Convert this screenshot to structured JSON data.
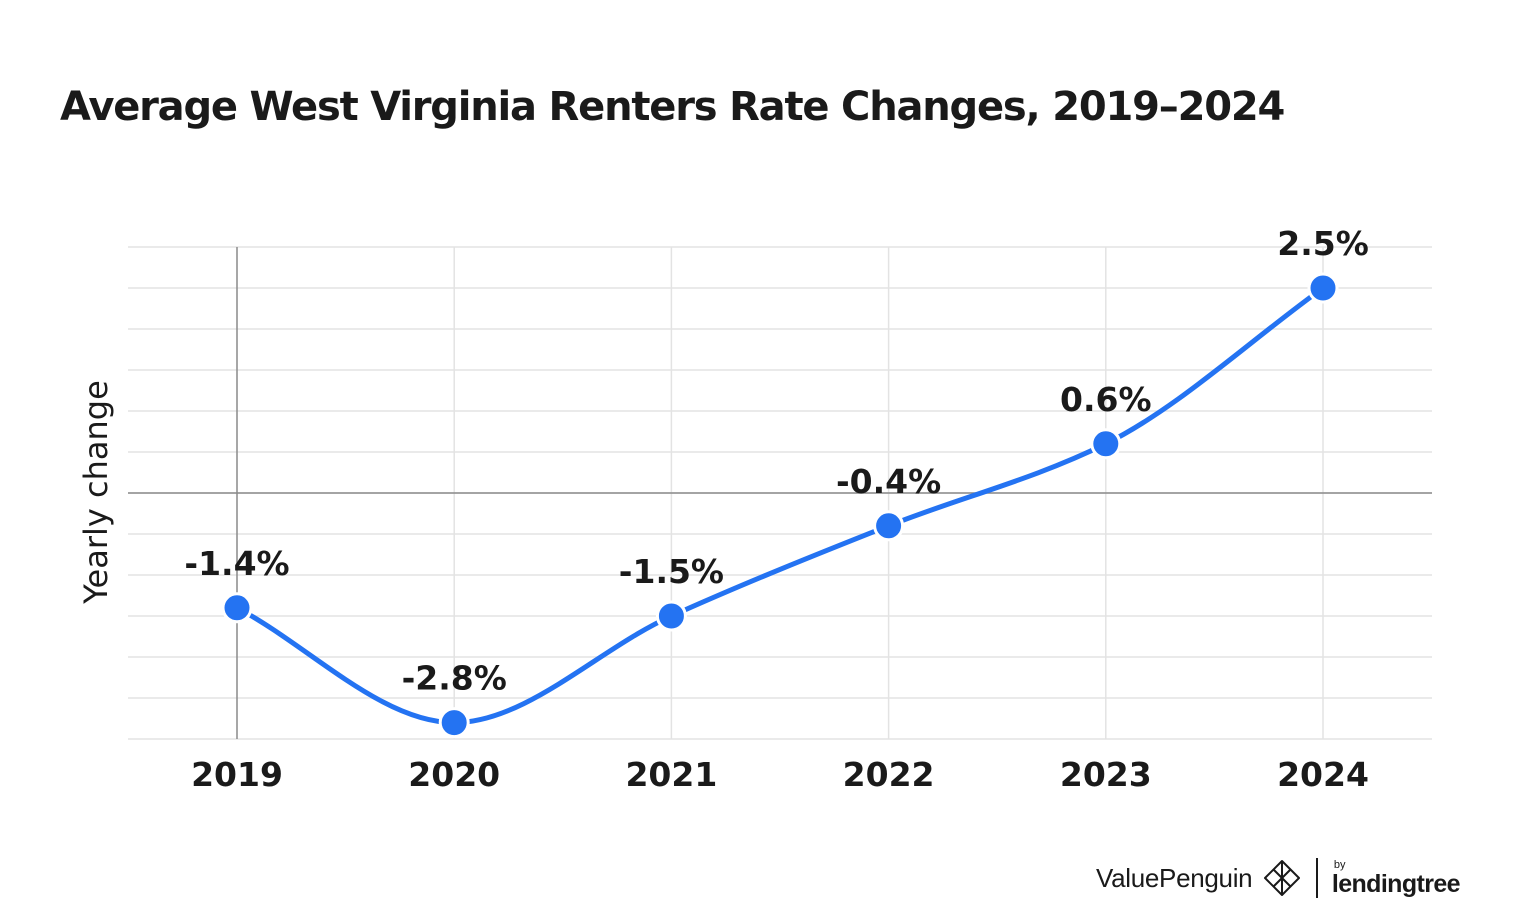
{
  "title": "Average West Virginia Renters Rate Changes, 2019–2024",
  "chart_data": {
    "type": "line",
    "title": "Average West Virginia Renters Rate Changes, 2019–2024",
    "xlabel": "",
    "ylabel": "Yearly change",
    "categories": [
      "2019",
      "2020",
      "2021",
      "2022",
      "2023",
      "2024"
    ],
    "values": [
      -1.4,
      -2.8,
      -1.5,
      -0.4,
      0.6,
      2.5
    ],
    "data_labels": [
      "-1.4%",
      "-2.8%",
      "-1.5%",
      "-0.4%",
      "0.6%",
      "2.5%"
    ],
    "ylim": [
      -3.0,
      3.0
    ],
    "grid": true,
    "line_color": "#2473f2"
  },
  "footer": {
    "brand": "ValuePenguin",
    "by": "by",
    "partner": "lendingtree"
  }
}
